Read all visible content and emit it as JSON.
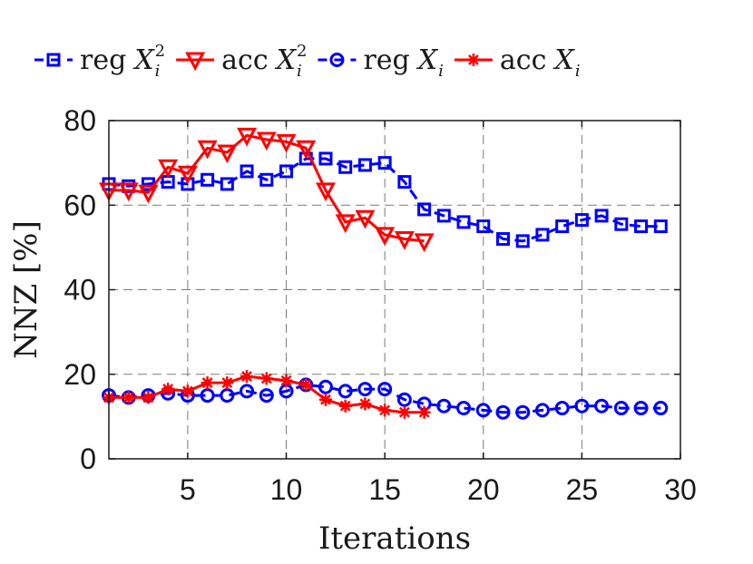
{
  "chart_data": {
    "type": "line",
    "title": "",
    "xlabel": "Iterations",
    "ylabel": "NNZ [%]",
    "xlim": [
      1,
      30
    ],
    "ylim": [
      0,
      80
    ],
    "xticks": [
      "5",
      "10",
      "15",
      "20",
      "25",
      "30"
    ],
    "yticks": [
      "0",
      "20",
      "40",
      "60",
      "80"
    ],
    "grid": true,
    "legend_position": "top",
    "series": [
      {
        "name": "reg X_i^2",
        "legend": {
          "prefix": "reg",
          "var": "X",
          "sub": "i",
          "sup": "2"
        },
        "color": "#0000ff",
        "marker": "square",
        "linestyle": "dashed",
        "x": [
          1,
          2,
          3,
          4,
          5,
          6,
          7,
          8,
          9,
          10,
          11,
          12,
          13,
          14,
          15,
          16,
          17,
          18,
          19,
          20,
          21,
          22,
          23,
          24,
          25,
          26,
          27,
          28,
          29
        ],
        "values": [
          65,
          64.5,
          65,
          65.5,
          65,
          66,
          65,
          68,
          66,
          68,
          71,
          71,
          69,
          69.5,
          70,
          65.5,
          59,
          57.5,
          56,
          55,
          52,
          51.5,
          53,
          55,
          56.5,
          57.5,
          55.5,
          55,
          55
        ]
      },
      {
        "name": "acc X_i^2",
        "legend": {
          "prefix": "acc",
          "var": "X",
          "sub": "i",
          "sup": "2"
        },
        "color": "#ff0000",
        "marker": "triangle-down",
        "linestyle": "solid",
        "x": [
          1,
          2,
          3,
          4,
          5,
          6,
          7,
          8,
          9,
          10,
          11,
          12,
          13,
          14,
          15,
          16,
          17
        ],
        "values": [
          63.5,
          63.5,
          63,
          69,
          67.5,
          73.5,
          72.5,
          76.5,
          75.5,
          75,
          73.5,
          63.5,
          56,
          57,
          53,
          52,
          51.5
        ]
      },
      {
        "name": "reg X_i",
        "legend": {
          "prefix": "reg",
          "var": "X",
          "sub": "i",
          "sup": ""
        },
        "color": "#0000ff",
        "marker": "circle",
        "linestyle": "dashed",
        "x": [
          1,
          2,
          3,
          4,
          5,
          6,
          7,
          8,
          9,
          10,
          11,
          12,
          13,
          14,
          15,
          16,
          17,
          18,
          19,
          20,
          21,
          22,
          23,
          24,
          25,
          26,
          27,
          28,
          29
        ],
        "values": [
          15,
          14.5,
          15,
          15.5,
          15,
          15,
          15,
          16,
          15,
          16,
          17.5,
          17,
          16,
          16.5,
          16.5,
          14,
          13,
          12.5,
          12,
          11.5,
          11,
          11,
          11.5,
          12,
          12.5,
          12.5,
          12,
          12,
          12
        ]
      },
      {
        "name": "acc X_i",
        "legend": {
          "prefix": "acc",
          "var": "X",
          "sub": "i",
          "sup": ""
        },
        "color": "#ff0000",
        "marker": "asterisk",
        "linestyle": "solid",
        "x": [
          1,
          2,
          3,
          4,
          5,
          6,
          7,
          8,
          9,
          10,
          11,
          12,
          13,
          14,
          15,
          16,
          17
        ],
        "values": [
          14.5,
          14.5,
          14.5,
          16.5,
          16,
          18,
          18,
          19.5,
          19,
          18.5,
          17.5,
          14,
          12.5,
          13,
          11.5,
          11,
          11
        ]
      }
    ]
  }
}
